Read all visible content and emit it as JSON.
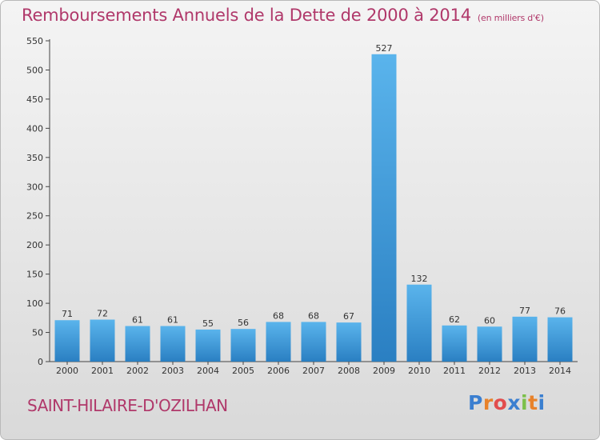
{
  "title": "Remboursements Annuels de la Dette de 2000 à 2014",
  "unit_note": "(en milliers d'€)",
  "commune": "SAINT-HILAIRE-D'OZILHAN",
  "logo": {
    "letters": [
      "P",
      "r",
      "o",
      "x",
      "i",
      "t",
      "i"
    ],
    "colors": [
      "#3b7fd0",
      "#e8822a",
      "#e24d4d",
      "#3b7fd0",
      "#7cc04a",
      "#e8822a",
      "#3b7fd0"
    ]
  },
  "colors": {
    "bar_top": "#5ab4ec",
    "bar_bottom": "#2a7fc2",
    "title": "#b0386a"
  },
  "chart_data": {
    "type": "bar",
    "categories": [
      "2000",
      "2001",
      "2002",
      "2003",
      "2004",
      "2005",
      "2006",
      "2007",
      "2008",
      "2009",
      "2010",
      "2011",
      "2012",
      "2013",
      "2014"
    ],
    "values": [
      71,
      72,
      61,
      61,
      55,
      56,
      68,
      68,
      67,
      527,
      132,
      62,
      60,
      77,
      76
    ],
    "ylim": [
      0,
      550
    ],
    "yticks": [
      0,
      50,
      100,
      150,
      200,
      250,
      300,
      350,
      400,
      450,
      500,
      550
    ],
    "grid": false
  }
}
